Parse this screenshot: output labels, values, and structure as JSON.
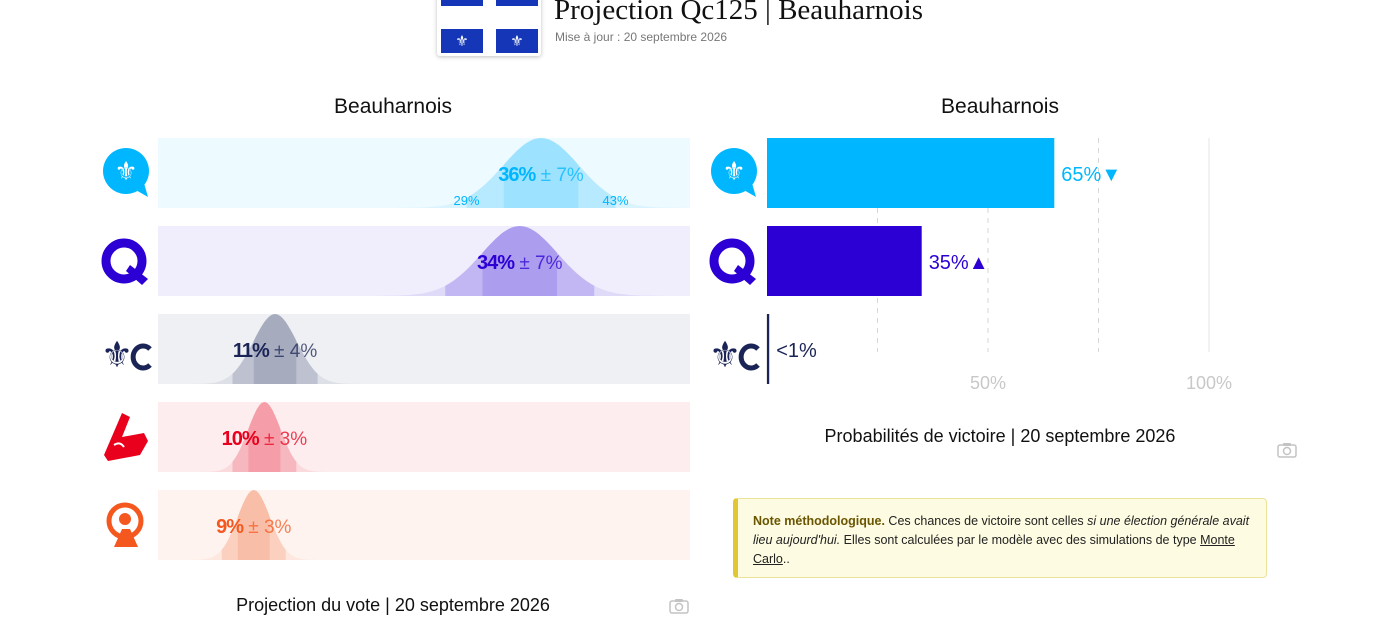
{
  "header": {
    "title": "Projection Qc125 | Beauharnois",
    "subtitle": "Mise à jour : 20 septembre 2026"
  },
  "colors": {
    "caq": "#00b7ff",
    "pq": "#2c00d5",
    "plq": "#1a2456",
    "pcq": "#e8001c",
    "qs": "#f4581f"
  },
  "parties": [
    {
      "key": "caq",
      "logo": "fleur-de-lis-bubble-icon"
    },
    {
      "key": "pq",
      "logo": "q-letter-icon"
    },
    {
      "key": "plq",
      "logo": "fleur-de-lis-c-icon"
    },
    {
      "key": "pcq",
      "logo": "leaf-flag-icon"
    },
    {
      "key": "qs",
      "logo": "person-swirl-icon"
    }
  ],
  "vote_panel": {
    "title": "Beauharnois",
    "caption": "Projection du vote | 20 septembre 2026"
  },
  "prob_panel": {
    "title": "Beauharnois",
    "caption": "Probabilités de victoire | 20 septembre 2026"
  },
  "chart_data": [
    {
      "type": "bar",
      "title": "Beauharnois",
      "caption": "Projection du vote | 20 septembre 2026",
      "series": [
        {
          "party": "caq",
          "value": 36,
          "moe": 7,
          "label": "36%",
          "moe_label": "± 7%",
          "low_label": "29%",
          "high_label": "43%"
        },
        {
          "party": "pq",
          "value": 34,
          "moe": 7,
          "label": "34%",
          "moe_label": "± 7%"
        },
        {
          "party": "plq",
          "value": 11,
          "moe": 4,
          "label": "11%",
          "moe_label": "± 4%"
        },
        {
          "party": "pcq",
          "value": 10,
          "moe": 3,
          "label": "10%",
          "moe_label": "± 3%"
        },
        {
          "party": "qs",
          "value": 9,
          "moe": 3,
          "label": "9%",
          "moe_label": "± 3%"
        }
      ],
      "xlim": [
        0,
        50
      ]
    },
    {
      "type": "bar",
      "title": "Beauharnois",
      "caption": "Probabilités de victoire | 20 septembre 2026",
      "series": [
        {
          "party": "caq",
          "value": 65,
          "label": "65%",
          "trend": "▼"
        },
        {
          "party": "pq",
          "value": 35,
          "label": "35%",
          "trend": "▲"
        },
        {
          "party": "plq",
          "value": 0.5,
          "label": "<1%",
          "trend": ""
        }
      ],
      "xlim": [
        0,
        100
      ],
      "ticks": [
        {
          "value": 50,
          "label": "50%"
        },
        {
          "value": 100,
          "label": "100%"
        }
      ],
      "gridlines": [
        25,
        50,
        75,
        100
      ]
    }
  ],
  "note": {
    "title": "Note méthodologique.",
    "text1": " Ces chances de victoire sont celles ",
    "italic": "si une élection générale avait lieu aujourd'hui.",
    "text2": " Elles sont calculées par le modèle avec des simulations de type ",
    "link": "Monte Carlo",
    "text3": ".."
  },
  "icons": {
    "camera": "camera-icon",
    "flag": "quebec-flag-icon"
  }
}
